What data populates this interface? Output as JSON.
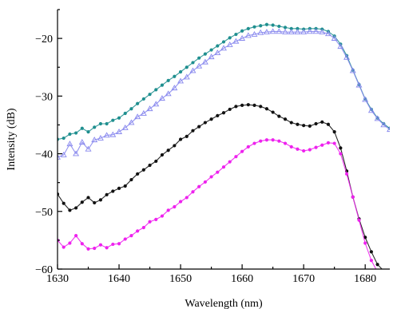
{
  "chart_data": {
    "type": "line",
    "title": "",
    "xlabel": "Wavelength (nm)",
    "ylabel": "Intensity (dB)",
    "xlim": [
      1630,
      1684
    ],
    "ylim": [
      -60,
      -15
    ],
    "xticks": [
      1630,
      1640,
      1650,
      1660,
      1670,
      1680
    ],
    "yticks": [
      -60,
      -50,
      -40,
      -30,
      -20
    ],
    "xtick_labels": [
      "1630",
      "1640",
      "1650",
      "1660",
      "1670",
      "1680"
    ],
    "ytick_labels": [
      "−60",
      "−50",
      "−40",
      "−30",
      "−20"
    ],
    "grid": false,
    "legend": "none",
    "series": [
      {
        "color": "#1f8f8f",
        "marker": "dot",
        "x": [
          1630,
          1631,
          1632,
          1633,
          1634,
          1635,
          1636,
          1637,
          1638,
          1639,
          1640,
          1641,
          1642,
          1643,
          1644,
          1645,
          1646,
          1647,
          1648,
          1649,
          1650,
          1651,
          1652,
          1653,
          1654,
          1655,
          1656,
          1657,
          1658,
          1659,
          1660,
          1661,
          1662,
          1663,
          1664,
          1665,
          1666,
          1667,
          1668,
          1669,
          1670,
          1671,
          1672,
          1673,
          1674,
          1675,
          1676,
          1677,
          1678,
          1679,
          1680,
          1681,
          1682,
          1683,
          1684
        ],
        "y": [
          -37.5,
          -37.3,
          -36.6,
          -36.4,
          -35.6,
          -36.2,
          -35.4,
          -34.8,
          -34.8,
          -34.2,
          -33.8,
          -33.0,
          -32.2,
          -31.3,
          -30.5,
          -29.7,
          -28.9,
          -28.1,
          -27.3,
          -26.6,
          -25.8,
          -25.0,
          -24.2,
          -23.4,
          -22.7,
          -22.0,
          -21.3,
          -20.6,
          -19.9,
          -19.3,
          -18.7,
          -18.3,
          -18.0,
          -17.8,
          -17.6,
          -17.7,
          -17.9,
          -18.1,
          -18.3,
          -18.3,
          -18.4,
          -18.3,
          -18.3,
          -18.4,
          -18.8,
          -19.6,
          -21.0,
          -23.0,
          -25.5,
          -28.0,
          -30.5,
          -32.3,
          -33.8,
          -34.8,
          -35.6
        ]
      },
      {
        "color": "#8888ee",
        "marker": "triangle",
        "x": [
          1630,
          1631,
          1632,
          1633,
          1634,
          1635,
          1636,
          1637,
          1638,
          1639,
          1640,
          1641,
          1642,
          1643,
          1644,
          1645,
          1646,
          1647,
          1648,
          1649,
          1650,
          1651,
          1652,
          1653,
          1654,
          1655,
          1656,
          1657,
          1658,
          1659,
          1660,
          1661,
          1662,
          1663,
          1664,
          1665,
          1666,
          1667,
          1668,
          1669,
          1670,
          1671,
          1672,
          1673,
          1674,
          1675,
          1676,
          1677,
          1678,
          1679,
          1680,
          1681,
          1682,
          1683,
          1684
        ],
        "y": [
          -40.6,
          -40.2,
          -38.3,
          -40.0,
          -38.0,
          -39.2,
          -37.6,
          -37.3,
          -36.8,
          -36.7,
          -36.2,
          -35.5,
          -34.6,
          -33.6,
          -33.0,
          -32.2,
          -31.4,
          -30.4,
          -29.6,
          -28.6,
          -27.4,
          -26.7,
          -25.6,
          -24.8,
          -24.1,
          -23.2,
          -22.5,
          -21.7,
          -21.1,
          -20.5,
          -20.0,
          -19.5,
          -19.3,
          -19.0,
          -18.9,
          -18.8,
          -18.8,
          -18.9,
          -18.9,
          -18.9,
          -18.9,
          -18.8,
          -18.8,
          -18.9,
          -19.2,
          -20.0,
          -21.4,
          -23.3,
          -25.6,
          -28.1,
          -30.6,
          -32.5,
          -33.9,
          -35.0,
          -35.8
        ]
      },
      {
        "color": "#111111",
        "marker": "dot",
        "x": [
          1630,
          1631,
          1632,
          1633,
          1634,
          1635,
          1636,
          1637,
          1638,
          1639,
          1640,
          1641,
          1642,
          1643,
          1644,
          1645,
          1646,
          1647,
          1648,
          1649,
          1650,
          1651,
          1652,
          1653,
          1654,
          1655,
          1656,
          1657,
          1658,
          1659,
          1660,
          1661,
          1662,
          1663,
          1664,
          1665,
          1666,
          1667,
          1668,
          1669,
          1670,
          1671,
          1672,
          1673,
          1674,
          1675,
          1676,
          1677,
          1678,
          1679,
          1680,
          1681,
          1682,
          1683
        ],
        "y": [
          -47.0,
          -48.6,
          -49.8,
          -49.4,
          -48.4,
          -47.6,
          -48.5,
          -48.0,
          -47.1,
          -46.5,
          -46.0,
          -45.6,
          -44.5,
          -43.5,
          -42.8,
          -42.0,
          -41.3,
          -40.2,
          -39.4,
          -38.6,
          -37.5,
          -37.0,
          -36.0,
          -35.3,
          -34.6,
          -34.0,
          -33.4,
          -32.9,
          -32.3,
          -31.8,
          -31.6,
          -31.5,
          -31.6,
          -31.8,
          -32.2,
          -32.8,
          -33.5,
          -34.0,
          -34.6,
          -34.9,
          -35.1,
          -35.2,
          -34.8,
          -34.5,
          -34.9,
          -36.2,
          -39.0,
          -43.0,
          -47.5,
          -51.3,
          -54.5,
          -57.0,
          -59.2,
          -60.3
        ]
      },
      {
        "color": "#ee22ee",
        "marker": "dot",
        "x": [
          1630,
          1631,
          1632,
          1633,
          1634,
          1635,
          1636,
          1637,
          1638,
          1639,
          1640,
          1641,
          1642,
          1643,
          1644,
          1645,
          1646,
          1647,
          1648,
          1649,
          1650,
          1651,
          1652,
          1653,
          1654,
          1655,
          1656,
          1657,
          1658,
          1659,
          1660,
          1661,
          1662,
          1663,
          1664,
          1665,
          1666,
          1667,
          1668,
          1669,
          1670,
          1671,
          1672,
          1673,
          1674,
          1675,
          1676,
          1677,
          1678,
          1679,
          1680,
          1681,
          1682
        ],
        "y": [
          -55.0,
          -56.2,
          -55.5,
          -54.2,
          -55.6,
          -56.5,
          -56.4,
          -55.8,
          -56.3,
          -55.7,
          -55.6,
          -54.8,
          -54.2,
          -53.4,
          -52.8,
          -51.8,
          -51.4,
          -50.8,
          -49.8,
          -49.2,
          -48.3,
          -47.6,
          -46.6,
          -45.7,
          -44.9,
          -44.0,
          -43.2,
          -42.3,
          -41.4,
          -40.5,
          -39.6,
          -38.8,
          -38.2,
          -37.8,
          -37.6,
          -37.6,
          -37.8,
          -38.2,
          -38.8,
          -39.2,
          -39.5,
          -39.3,
          -38.9,
          -38.5,
          -38.1,
          -38.2,
          -40.0,
          -43.5,
          -47.5,
          -51.5,
          -55.5,
          -58.5,
          -60.5
        ]
      }
    ]
  }
}
